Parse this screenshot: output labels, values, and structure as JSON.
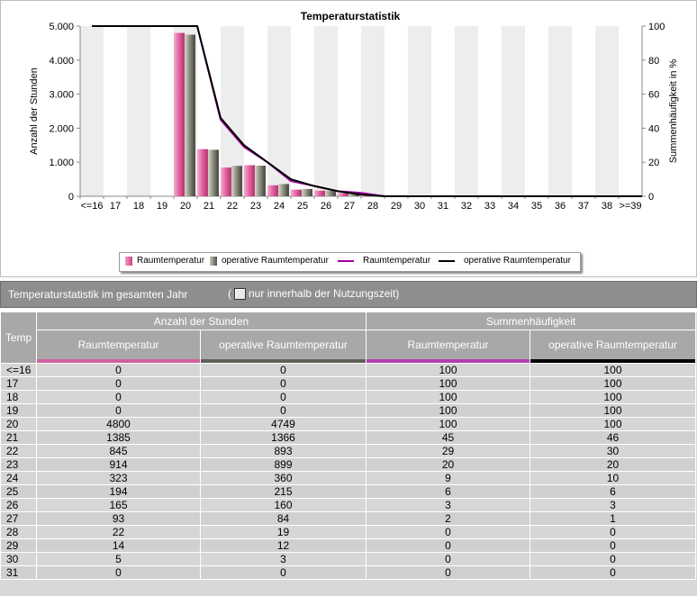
{
  "chart_data": {
    "type": "bar",
    "title": "Temperaturstatistik",
    "ylabel": "Anzahl der Stunden",
    "y2label": "Summenhäufigkeit in %",
    "ylim": [
      0,
      5000
    ],
    "y2lim": [
      0,
      100
    ],
    "yticks": [
      "0",
      "1.000",
      "2.000",
      "3.000",
      "4.000",
      "5.000"
    ],
    "y2ticks": [
      "0",
      "20",
      "40",
      "60",
      "80",
      "100"
    ],
    "categories": [
      "<=16",
      "17",
      "18",
      "19",
      "20",
      "21",
      "22",
      "23",
      "24",
      "25",
      "26",
      "27",
      "28",
      "29",
      "30",
      "31",
      "32",
      "33",
      "34",
      "35",
      "36",
      "37",
      "38",
      ">=39"
    ],
    "series": [
      {
        "name": "Raumtemperatur",
        "kind": "bar",
        "color": "#e0609c",
        "values": [
          0,
          0,
          0,
          0,
          4800,
          1385,
          845,
          914,
          323,
          194,
          165,
          93,
          22,
          14,
          5,
          0,
          0,
          0,
          0,
          0,
          0,
          0,
          0,
          0
        ]
      },
      {
        "name": "operative Raumtemperatur",
        "kind": "bar",
        "color": "#8a8a7a",
        "values": [
          0,
          0,
          0,
          0,
          4749,
          1366,
          893,
          899,
          360,
          215,
          160,
          84,
          19,
          12,
          3,
          0,
          0,
          0,
          0,
          0,
          0,
          0,
          0,
          0
        ]
      },
      {
        "name": "Raumtemperatur",
        "kind": "line",
        "axis": "right",
        "color": "#a000a0",
        "values": [
          100,
          100,
          100,
          100,
          100,
          45,
          29,
          20,
          9,
          6,
          3,
          2,
          0,
          0,
          0,
          0,
          0,
          0,
          0,
          0,
          0,
          0,
          0,
          0
        ]
      },
      {
        "name": "operative Raumtemperatur",
        "kind": "line",
        "axis": "right",
        "color": "#000000",
        "values": [
          100,
          100,
          100,
          100,
          100,
          46,
          30,
          20,
          10,
          6,
          3,
          1,
          0,
          0,
          0,
          0,
          0,
          0,
          0,
          0,
          0,
          0,
          0,
          0
        ]
      }
    ],
    "grid": true,
    "legend": "bottom"
  },
  "header": {
    "title": "Temperaturstatistik im gesamten Jahr",
    "paren_open": "(",
    "checkbox_label": "nur innerhalb der Nutzungszeit)"
  },
  "table": {
    "temp_header": "Temp",
    "group1": "Anzahl der Stunden",
    "group2": "Summenhäufigkeit",
    "col1": "Raumtemperatur",
    "col2": "operative Raumtemperatur",
    "col3": "Raumtemperatur",
    "col4": "operative Raumtemperatur",
    "underline_colors": [
      "#d060a0",
      "#606060",
      "#b040b0",
      "#000000"
    ],
    "rows": [
      [
        "<=16",
        "0",
        "0",
        "100",
        "100"
      ],
      [
        "17",
        "0",
        "0",
        "100",
        "100"
      ],
      [
        "18",
        "0",
        "0",
        "100",
        "100"
      ],
      [
        "19",
        "0",
        "0",
        "100",
        "100"
      ],
      [
        "20",
        "4800",
        "4749",
        "100",
        "100"
      ],
      [
        "21",
        "1385",
        "1366",
        "45",
        "46"
      ],
      [
        "22",
        "845",
        "893",
        "29",
        "30"
      ],
      [
        "23",
        "914",
        "899",
        "20",
        "20"
      ],
      [
        "24",
        "323",
        "360",
        "9",
        "10"
      ],
      [
        "25",
        "194",
        "215",
        "6",
        "6"
      ],
      [
        "26",
        "165",
        "160",
        "3",
        "3"
      ],
      [
        "27",
        "93",
        "84",
        "2",
        "1"
      ],
      [
        "28",
        "22",
        "19",
        "0",
        "0"
      ],
      [
        "29",
        "14",
        "12",
        "0",
        "0"
      ],
      [
        "30",
        "5",
        "3",
        "0",
        "0"
      ],
      [
        "31",
        "0",
        "0",
        "0",
        "0"
      ]
    ]
  }
}
